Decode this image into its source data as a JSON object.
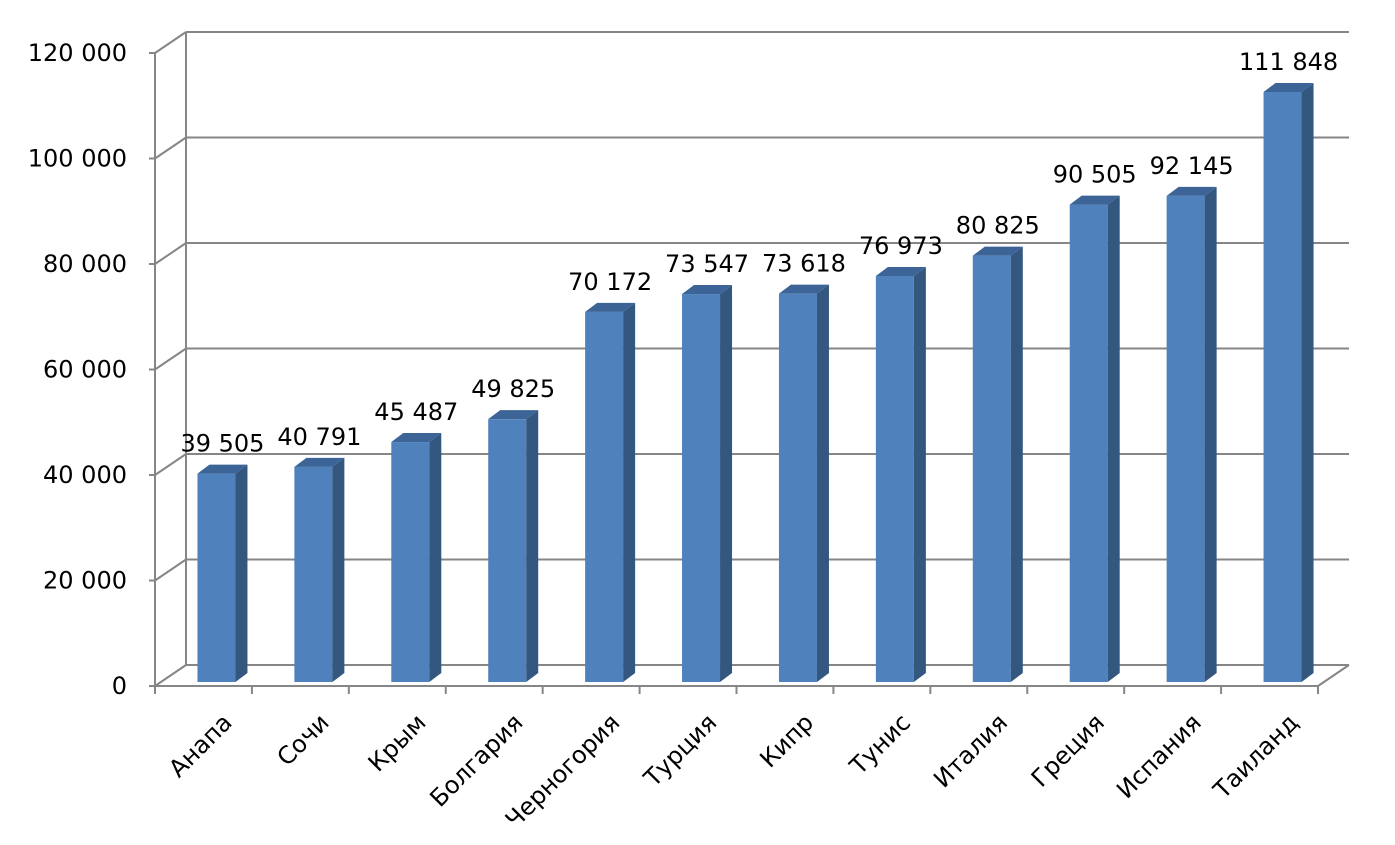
{
  "chart_data": {
    "type": "bar",
    "categories": [
      "Анапа",
      "Сочи",
      "Крым",
      "Болгария",
      "Черногория",
      "Турция",
      "Кипр",
      "Тунис",
      "Италия",
      "Греция",
      "Испания",
      "Таиланд"
    ],
    "values": [
      39505,
      40791,
      45487,
      49825,
      70172,
      73547,
      73618,
      76973,
      80825,
      90505,
      92145,
      111848
    ],
    "data_labels": [
      "39 505",
      "40 791",
      "45 487",
      "49 825",
      "70 172",
      "73 547",
      "73 618",
      "76 973",
      "80 825",
      "90 505",
      "92 145",
      "111 848"
    ],
    "title": "",
    "xlabel": "",
    "ylabel": "",
    "ylim": [
      0,
      120000
    ],
    "y_ticks": [
      0,
      20000,
      40000,
      60000,
      80000,
      100000,
      120000
    ],
    "y_tick_labels": [
      "0",
      "20 000",
      "40 000",
      "60 000",
      "80 000",
      "100 000",
      "120 000"
    ],
    "grid": true,
    "legend": "none",
    "style": "3d-column",
    "colors": {
      "bar_front": "#4F81BD",
      "bar_side": "#34577F",
      "bar_top": "#3C6496",
      "grid": "#868686",
      "axis": "#868686"
    }
  }
}
